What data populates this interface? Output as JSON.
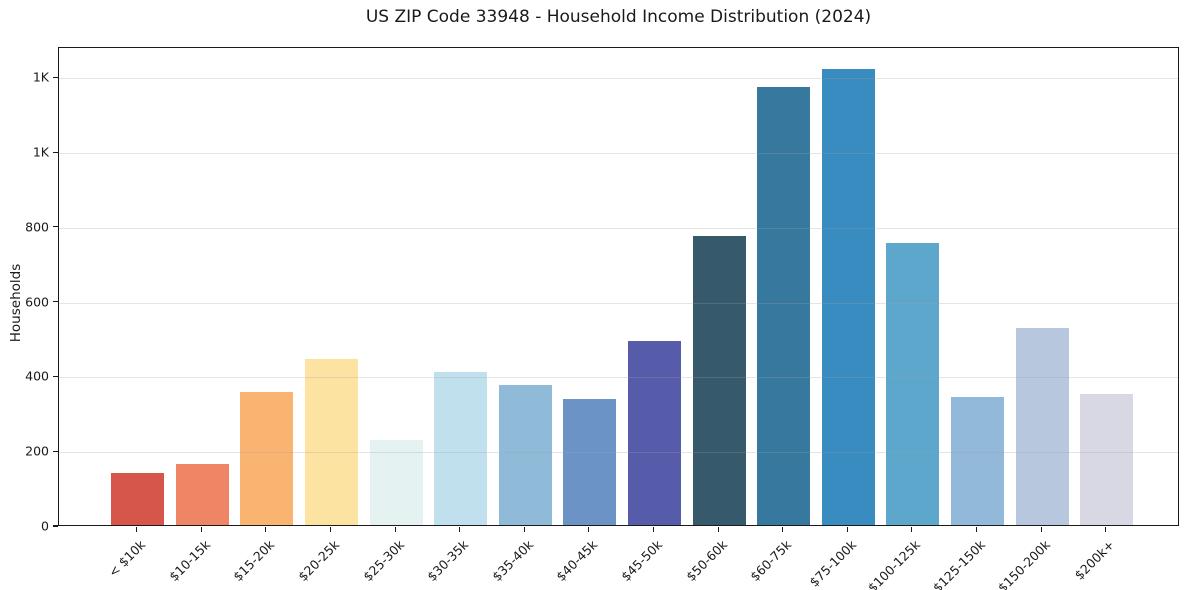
{
  "chart_data": {
    "type": "bar",
    "title": "US ZIP Code 33948 - Household Income Distribution (2024)",
    "ylabel": "Households",
    "xlabel": "",
    "categories": [
      "< $10k",
      "$10-15k",
      "$15-20k",
      "$20-25k",
      "$25-30k",
      "$30-35k",
      "$35-40k",
      "$40-45k",
      "$45-50k",
      "$50-60k",
      "$60-75k",
      "$75-100k",
      "$100-125k",
      "$125-150k",
      "$150-200k",
      "$200k+"
    ],
    "values": [
      138,
      162,
      355,
      445,
      228,
      410,
      375,
      338,
      492,
      772,
      1172,
      1220,
      753,
      343,
      526,
      350
    ],
    "bar_colors": [
      "#d6564c",
      "#f08566",
      "#fab471",
      "#fde3a2",
      "#e4f2f1",
      "#c1e0ed",
      "#8fbad8",
      "#6b93c6",
      "#575caa",
      "#36596c",
      "#37789f",
      "#398cc0",
      "#5ca7cb",
      "#92b9da",
      "#b6c7de",
      "#d8d8e5"
    ],
    "y_ticks": {
      "values": [
        0,
        200,
        400,
        600,
        800,
        1000,
        1200
      ],
      "labels": [
        "0",
        "200",
        "400",
        "600",
        "800",
        "1K",
        "1K"
      ]
    },
    "ylim": [
      0,
      1281
    ],
    "grid": "horizontal",
    "legend": "none",
    "styles": {
      "text_color": "#1a1a1a",
      "grid_color": "#e9e9e9",
      "spine_color": "#1a1a1a",
      "background": "#ffffff"
    }
  }
}
